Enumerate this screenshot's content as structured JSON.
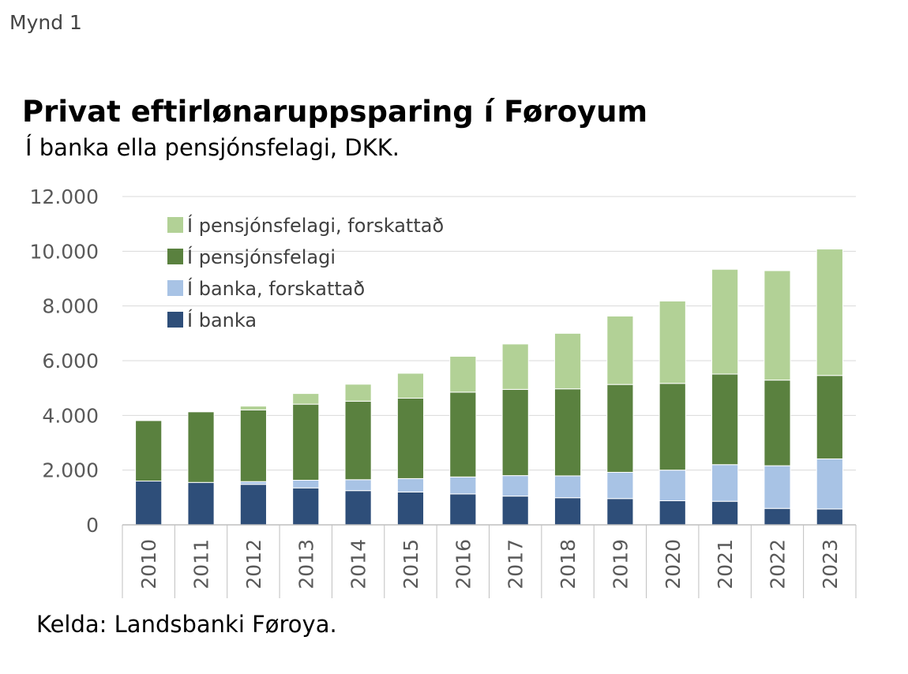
{
  "figure_label": "Mynd 1",
  "source": "Kelda: Landsbanki Føroya.",
  "colors": {
    "bank": "#2e4e79",
    "bank_pretaxed": "#a8c3e5",
    "pension": "#5a813f",
    "pension_pretaxed": "#b2d196",
    "grid": "#d9d9d9",
    "axis": "#bfbfbf"
  },
  "chart_data": {
    "type": "bar",
    "stacked": true,
    "title": "Privat eftirlønaruppsparing í Føroyum",
    "subtitle": "Í banka ella pensjónsfelagi, DKK.",
    "xlabel": "",
    "ylabel": "",
    "ylim": [
      0,
      12000
    ],
    "yticks": [
      0,
      2000,
      4000,
      6000,
      8000,
      10000,
      12000
    ],
    "ytick_labels": [
      "0",
      "2.000",
      "4.000",
      "6.000",
      "8.000",
      "10.000",
      "12.000"
    ],
    "grid": true,
    "legend_position": "top-left",
    "categories": [
      "2010",
      "2011",
      "2012",
      "2013",
      "2014",
      "2015",
      "2016",
      "2017",
      "2018",
      "2019",
      "2020",
      "2021",
      "2022",
      "2023"
    ],
    "series": [
      {
        "name": "Í banka",
        "color_key": "bank",
        "values": [
          1600,
          1550,
          1480,
          1350,
          1250,
          1200,
          1130,
          1050,
          990,
          960,
          880,
          860,
          600,
          580
        ]
      },
      {
        "name": "Í banka, forskattað",
        "color_key": "bank_pretaxed",
        "values": [
          0,
          0,
          100,
          280,
          400,
          490,
          620,
          750,
          800,
          960,
          1120,
          1340,
          1560,
          1830
        ]
      },
      {
        "name": "Í pensjónsfelagi",
        "color_key": "pension",
        "values": [
          2210,
          2580,
          2620,
          2780,
          2870,
          2940,
          3100,
          3150,
          3180,
          3210,
          3170,
          3310,
          3130,
          3050
        ]
      },
      {
        "name": "Í pensjónsfelagi, forskattað",
        "color_key": "pension_pretaxed",
        "values": [
          0,
          0,
          140,
          390,
          620,
          910,
          1310,
          1660,
          2030,
          2500,
          3010,
          3830,
          4000,
          4620
        ]
      }
    ]
  }
}
